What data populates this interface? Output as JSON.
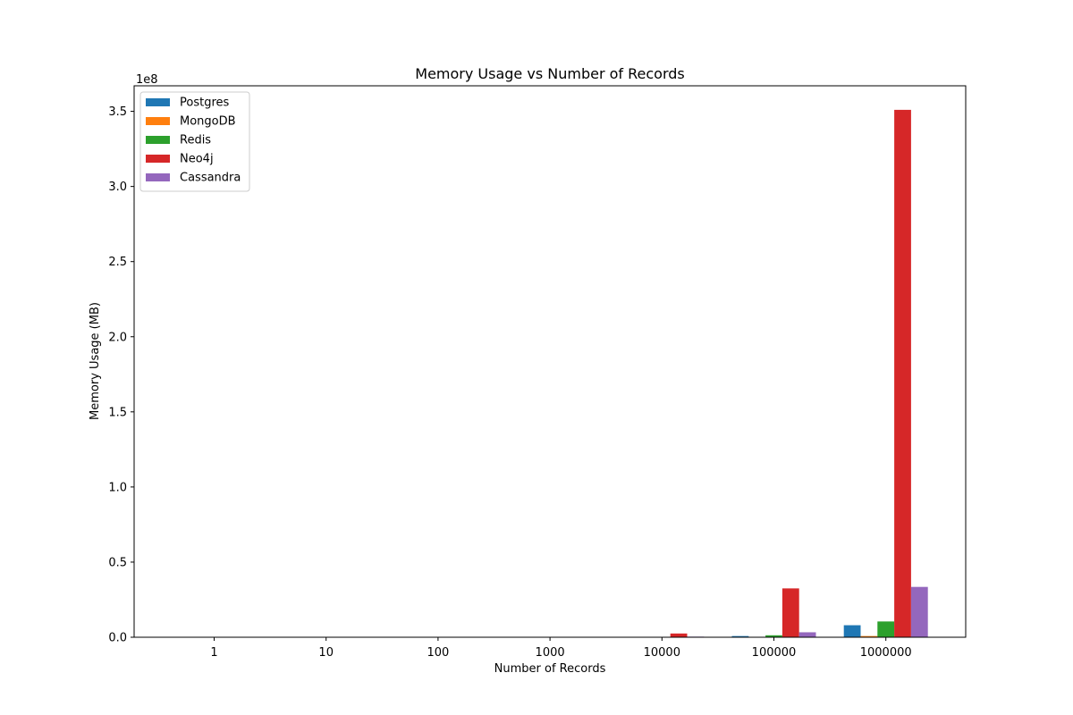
{
  "chart_data": {
    "type": "bar",
    "title": "Memory Usage vs Number of Records",
    "xlabel": "Number of Records",
    "ylabel": "Memory Usage (MB)",
    "y_scale_label": "1e8",
    "categories": [
      "1",
      "10",
      "100",
      "1000",
      "10000",
      "100000",
      "1000000"
    ],
    "ylim": [
      0,
      367000000
    ],
    "yticks": [
      0,
      50000000,
      100000000,
      150000000,
      200000000,
      250000000,
      300000000,
      350000000
    ],
    "ytick_labels": [
      "0.0",
      "0.5",
      "1.0",
      "1.5",
      "2.0",
      "2.5",
      "3.0",
      "3.5"
    ],
    "grid": false,
    "legend_position": "upper-left",
    "series": [
      {
        "name": "Postgres",
        "color": "#1f77b4",
        "values": [
          0,
          0,
          0,
          0,
          100000,
          800000,
          8000000
        ]
      },
      {
        "name": "MongoDB",
        "color": "#ff7f0e",
        "values": [
          0,
          0,
          0,
          0,
          20000,
          100000,
          800000
        ]
      },
      {
        "name": "Redis",
        "color": "#2ca02c",
        "values": [
          0,
          0,
          0,
          0,
          150000,
          1300000,
          10500000
        ]
      },
      {
        "name": "Neo4j",
        "color": "#d62728",
        "values": [
          0,
          0,
          0,
          40000,
          2500000,
          32500000,
          351000000
        ]
      },
      {
        "name": "Cassandra",
        "color": "#9467bd",
        "values": [
          0,
          0,
          0,
          10000,
          400000,
          3300000,
          33500000
        ]
      }
    ]
  }
}
